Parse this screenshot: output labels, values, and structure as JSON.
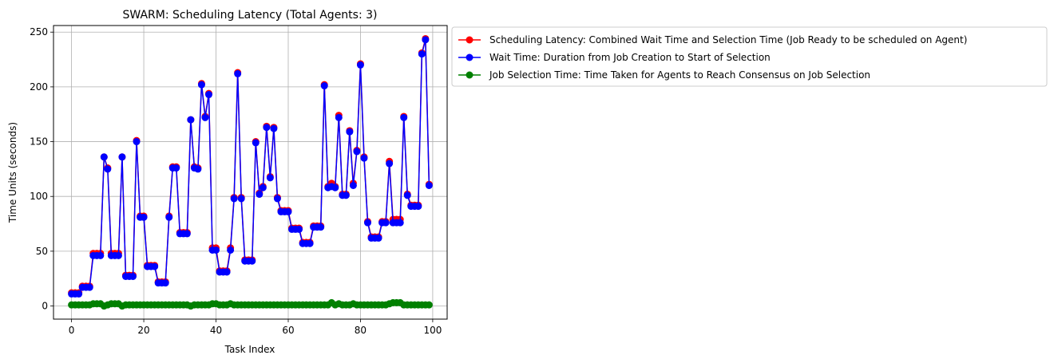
{
  "chart_data": {
    "type": "line",
    "title": "SWARM: Scheduling Latency (Total Agents: 3)",
    "xlabel": "Task Index",
    "ylabel": "Time Units (seconds)",
    "xlim": [
      -5,
      104
    ],
    "ylim": [
      -12,
      256
    ],
    "xticks": [
      0,
      20,
      40,
      60,
      80,
      100
    ],
    "yticks": [
      0,
      50,
      100,
      150,
      200,
      250
    ],
    "grid": true,
    "legend_position": "outside-top-right",
    "series": [
      {
        "name": "Scheduling Latency: Combined Wait Time and Selection Time (Job Ready to be scheduled on Agent)",
        "color": "#ff0000",
        "values": [
          12,
          12,
          12,
          18,
          18,
          18,
          48,
          48,
          48,
          136,
          126,
          48,
          48,
          48,
          136,
          28,
          28,
          28,
          151,
          82,
          82,
          37,
          37,
          37,
          22,
          22,
          22,
          82,
          127,
          127,
          67,
          67,
          67,
          170,
          127,
          126,
          203,
          173,
          194,
          53,
          53,
          32,
          32,
          32,
          53,
          99,
          213,
          99,
          42,
          42,
          42,
          150,
          103,
          109,
          164,
          118,
          163,
          99,
          87,
          87,
          87,
          71,
          71,
          71,
          58,
          58,
          58,
          73,
          73,
          73,
          202,
          109,
          112,
          109,
          174,
          102,
          102,
          160,
          112,
          142,
          221,
          136,
          77,
          63,
          63,
          63,
          77,
          77,
          132,
          79,
          79,
          79,
          173,
          102,
          92,
          92,
          92,
          231,
          244,
          111
        ]
      },
      {
        "name": "Wait Time: Duration from Job Creation to Start of Selection",
        "color": "#0000ff",
        "values": [
          11,
          11,
          11,
          17,
          17,
          17,
          46,
          46,
          46,
          136,
          125,
          46,
          46,
          46,
          136,
          27,
          27,
          27,
          150,
          81,
          81,
          36,
          36,
          36,
          21,
          21,
          21,
          81,
          126,
          126,
          66,
          66,
          66,
          170,
          126,
          125,
          202,
          172,
          193,
          51,
          51,
          31,
          31,
          31,
          51,
          98,
          212,
          98,
          41,
          41,
          41,
          149,
          102,
          108,
          163,
          117,
          162,
          98,
          86,
          86,
          86,
          70,
          70,
          70,
          57,
          57,
          57,
          72,
          72,
          72,
          201,
          108,
          109,
          108,
          172,
          101,
          101,
          159,
          110,
          141,
          220,
          135,
          76,
          62,
          62,
          62,
          76,
          76,
          130,
          76,
          76,
          76,
          172,
          101,
          91,
          91,
          91,
          230,
          243,
          110
        ]
      },
      {
        "name": "Job Selection Time: Time Taken for Agents to Reach Consensus on Job Selection",
        "color": "#008000",
        "values": [
          1,
          1,
          1,
          1,
          1,
          1,
          2,
          2,
          2,
          0,
          1,
          2,
          2,
          2,
          0,
          1,
          1,
          1,
          1,
          1,
          1,
          1,
          1,
          1,
          1,
          1,
          1,
          1,
          1,
          1,
          1,
          1,
          1,
          0,
          1,
          1,
          1,
          1,
          1,
          2,
          2,
          1,
          1,
          1,
          2,
          1,
          1,
          1,
          1,
          1,
          1,
          1,
          1,
          1,
          1,
          1,
          1,
          1,
          1,
          1,
          1,
          1,
          1,
          1,
          1,
          1,
          1,
          1,
          1,
          1,
          1,
          1,
          3,
          1,
          2,
          1,
          1,
          1,
          2,
          1,
          1,
          1,
          1,
          1,
          1,
          1,
          1,
          1,
          2,
          3,
          3,
          3,
          1,
          1,
          1,
          1,
          1,
          1,
          1,
          1
        ]
      }
    ]
  }
}
